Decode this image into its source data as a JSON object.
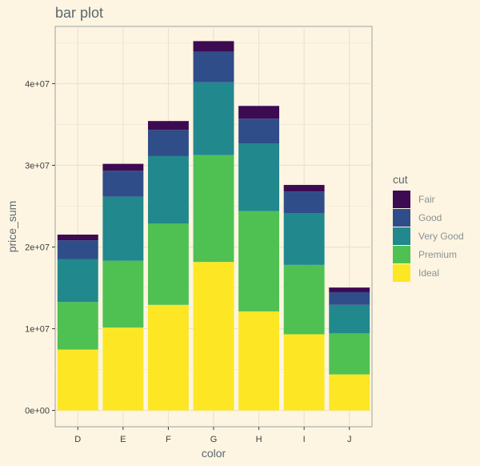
{
  "chart_data": {
    "type": "bar",
    "stacked": true,
    "title": "bar plot",
    "xlabel": "color",
    "ylabel": "price_sum",
    "categories": [
      "D",
      "E",
      "F",
      "G",
      "H",
      "I",
      "J"
    ],
    "ylim": [
      -2000000,
      47000000
    ],
    "yticks": [
      0,
      10000000,
      20000000,
      30000000,
      40000000
    ],
    "ytick_labels": [
      "0e+00",
      "1e+07",
      "2e+07",
      "3e+07",
      "4e+07"
    ],
    "grid": true,
    "legend": {
      "title": "cut",
      "position": "right"
    },
    "series": [
      {
        "name": "Ideal",
        "color": "#fde725",
        "values": [
          7450000,
          10140000,
          12920000,
          18170000,
          12120000,
          9320000,
          4410000
        ]
      },
      {
        "name": "Premium",
        "color": "#4fc153",
        "values": [
          5820000,
          8180000,
          9940000,
          13080000,
          12280000,
          8490000,
          5020000
        ]
      },
      {
        "name": "Very Good",
        "color": "#21888d",
        "values": [
          5260000,
          7840000,
          8270000,
          8910000,
          8290000,
          6320000,
          3490000
        ]
      },
      {
        "name": "Good",
        "color": "#2f4d89",
        "values": [
          2290000,
          3170000,
          3200000,
          3760000,
          3020000,
          2660000,
          1550000
        ]
      },
      {
        "name": "Fair",
        "color": "#3d0b51",
        "values": [
          700000,
          850000,
          1090000,
          1280000,
          1560000,
          810000,
          570000
        ]
      }
    ]
  }
}
